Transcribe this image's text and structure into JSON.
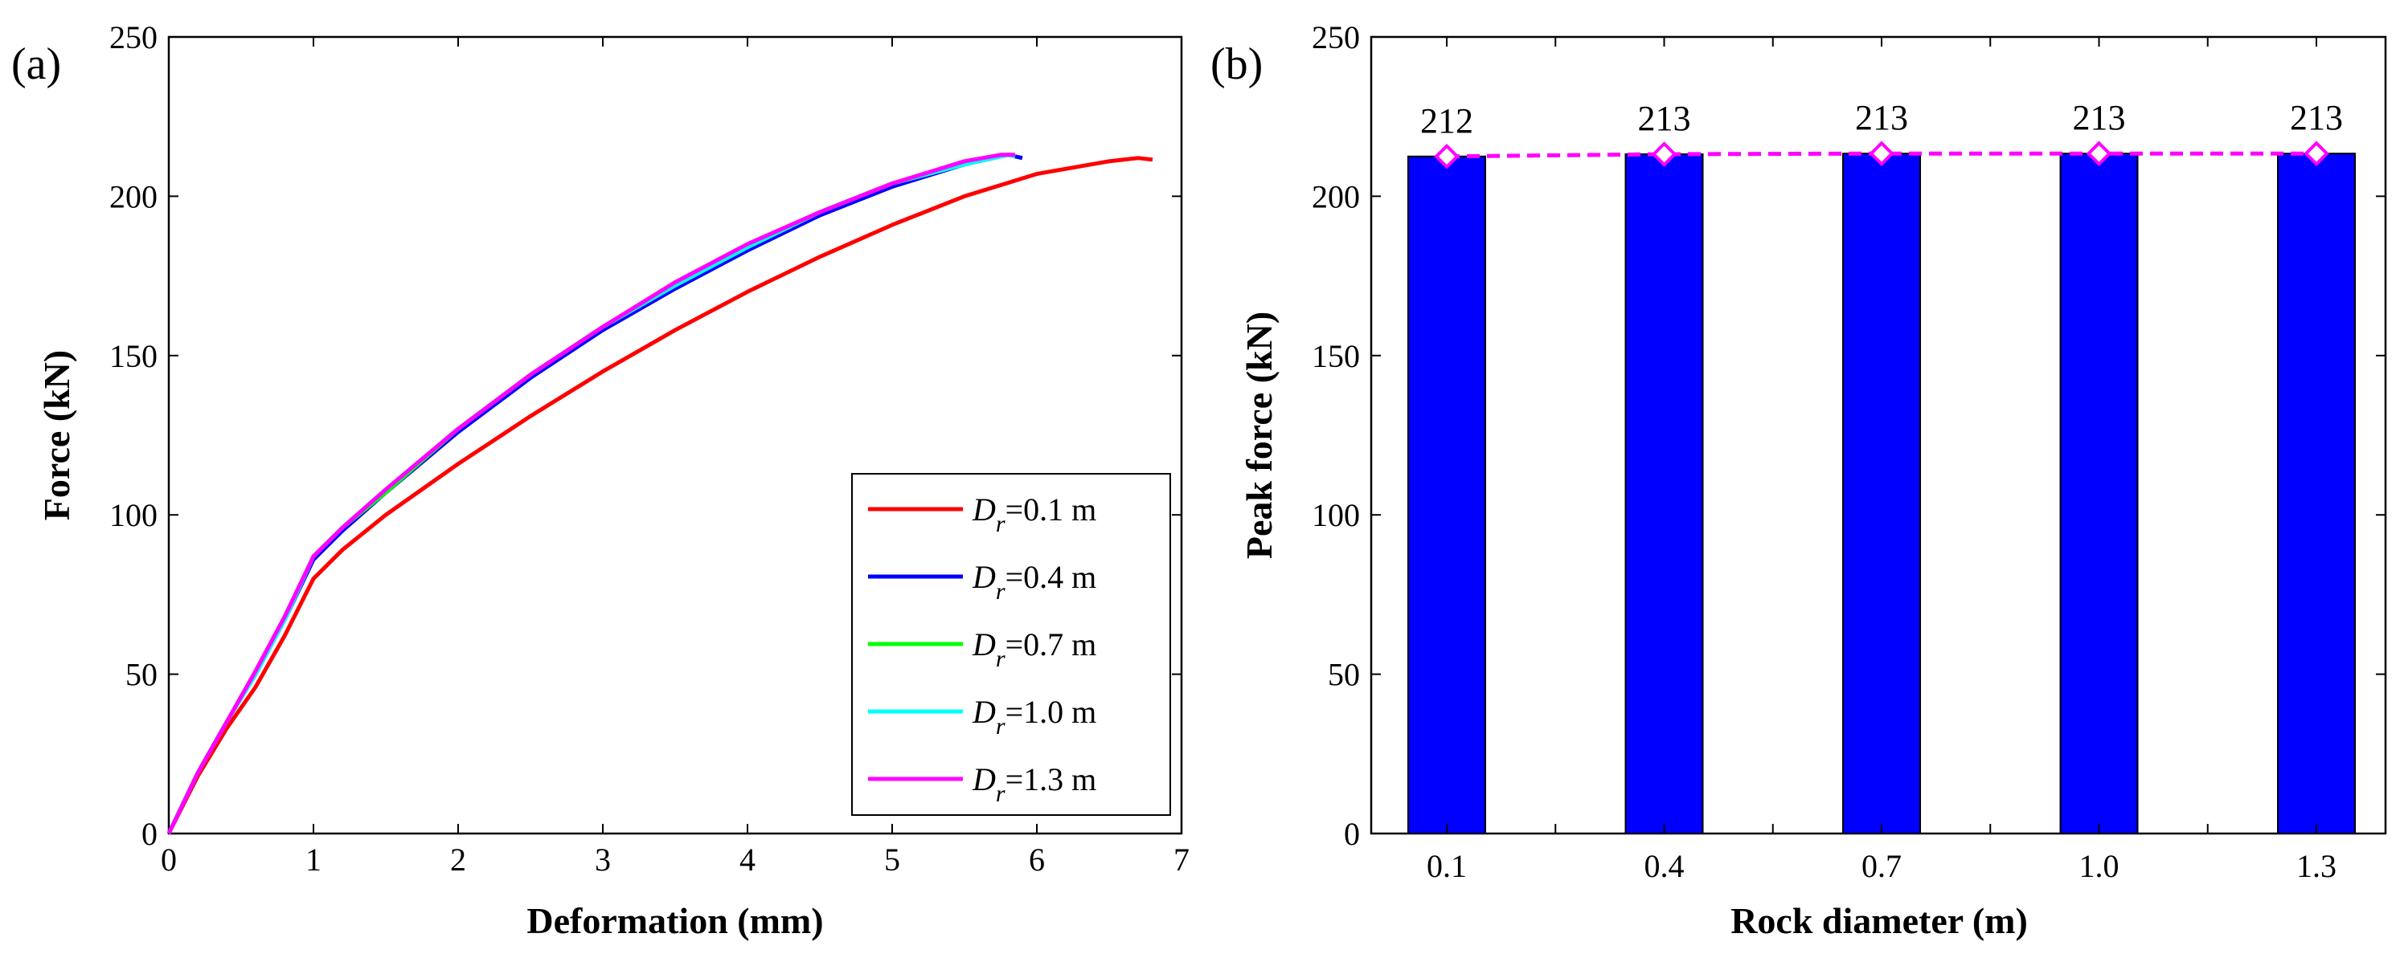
{
  "panels": {
    "a": "(a)",
    "b": "(b)"
  },
  "chart_data": [
    {
      "type": "line",
      "xlabel": "Deformation (mm)",
      "ylabel": "Force (kN)",
      "xlim": [
        0,
        7
      ],
      "ylim": [
        0,
        250
      ],
      "xticks": [
        0,
        1,
        2,
        3,
        4,
        5,
        6,
        7
      ],
      "yticks": [
        0,
        50,
        100,
        150,
        200,
        250
      ],
      "grid": false,
      "legend_position": "bottom-right",
      "series": [
        {
          "name": "Dr=0.1 m",
          "legend_symbol": "D",
          "legend_subscript": "r",
          "legend_rest": "=0.1 m",
          "color": "#ff0000",
          "points": [
            [
              0,
              0
            ],
            [
              0.2,
              18
            ],
            [
              0.4,
              33
            ],
            [
              0.6,
              46
            ],
            [
              0.8,
              62
            ],
            [
              1.0,
              80
            ],
            [
              1.2,
              89
            ],
            [
              1.5,
              100
            ],
            [
              2.0,
              116
            ],
            [
              2.5,
              131
            ],
            [
              3.0,
              145
            ],
            [
              3.5,
              158
            ],
            [
              4.0,
              170
            ],
            [
              4.5,
              181
            ],
            [
              5.0,
              191
            ],
            [
              5.5,
              200
            ],
            [
              6.0,
              207
            ],
            [
              6.5,
              211
            ],
            [
              6.7,
              212
            ],
            [
              6.8,
              211.5
            ]
          ]
        },
        {
          "name": "Dr=0.4 m",
          "legend_symbol": "D",
          "legend_subscript": "r",
          "legend_rest": "=0.4 m",
          "color": "#0000ff",
          "points": [
            [
              0,
              0
            ],
            [
              0.2,
              19
            ],
            [
              0.4,
              35
            ],
            [
              0.6,
              50
            ],
            [
              0.8,
              67
            ],
            [
              1.0,
              86
            ],
            [
              1.2,
              95
            ],
            [
              1.5,
              107
            ],
            [
              2.0,
              126
            ],
            [
              2.5,
              143
            ],
            [
              3.0,
              158
            ],
            [
              3.5,
              171
            ],
            [
              4.0,
              183
            ],
            [
              4.5,
              194
            ],
            [
              5.0,
              203
            ],
            [
              5.5,
              210
            ],
            [
              5.8,
              213
            ],
            [
              5.9,
              212
            ]
          ]
        },
        {
          "name": "Dr=0.7 m",
          "legend_symbol": "D",
          "legend_subscript": "r",
          "legend_rest": "=0.7 m",
          "color": "#00ff00",
          "points": [
            [
              0,
              0
            ],
            [
              0.2,
              19
            ],
            [
              0.4,
              35
            ],
            [
              0.6,
              50
            ],
            [
              0.8,
              67
            ],
            [
              1.0,
              87
            ],
            [
              1.2,
              96
            ],
            [
              1.5,
              107
            ],
            [
              2.0,
              127
            ],
            [
              2.5,
              144
            ],
            [
              3.0,
              159
            ],
            [
              3.5,
              172
            ],
            [
              4.0,
              184
            ],
            [
              4.5,
              195
            ],
            [
              5.0,
              204
            ],
            [
              5.5,
              210
            ],
            [
              5.8,
              213
            ],
            [
              5.85,
              212.5
            ]
          ]
        },
        {
          "name": "Dr=1.0 m",
          "legend_symbol": "D",
          "legend_subscript": "r",
          "legend_rest": "=1.0 m",
          "color": "#00ffff",
          "points": [
            [
              0,
              0
            ],
            [
              0.2,
              19
            ],
            [
              0.4,
              35
            ],
            [
              0.6,
              50
            ],
            [
              0.8,
              67
            ],
            [
              1.0,
              87
            ],
            [
              1.2,
              96
            ],
            [
              1.5,
              108
            ],
            [
              2.0,
              127
            ],
            [
              2.5,
              144
            ],
            [
              3.0,
              159
            ],
            [
              3.5,
              172
            ],
            [
              4.0,
              184
            ],
            [
              4.5,
              195
            ],
            [
              5.0,
              204
            ],
            [
              5.5,
              210
            ],
            [
              5.8,
              213
            ],
            [
              5.85,
              212.5
            ]
          ]
        },
        {
          "name": "Dr=1.3 m",
          "legend_symbol": "D",
          "legend_subscript": "r",
          "legend_rest": "=1.3 m",
          "color": "#ff00ff",
          "points": [
            [
              0,
              0
            ],
            [
              0.2,
              19
            ],
            [
              0.4,
              35
            ],
            [
              0.6,
              51
            ],
            [
              0.8,
              68
            ],
            [
              1.0,
              87
            ],
            [
              1.2,
              96
            ],
            [
              1.5,
              108
            ],
            [
              2.0,
              127
            ],
            [
              2.5,
              144
            ],
            [
              3.0,
              159
            ],
            [
              3.5,
              173
            ],
            [
              4.0,
              185
            ],
            [
              4.5,
              195
            ],
            [
              5.0,
              204
            ],
            [
              5.5,
              211
            ],
            [
              5.75,
              213
            ],
            [
              5.85,
              213
            ]
          ]
        }
      ]
    },
    {
      "type": "bar",
      "xlabel": "Rock diameter (m)",
      "ylabel": "Peak force (kN)",
      "ylim": [
        0,
        250
      ],
      "yticks": [
        0,
        50,
        100,
        150,
        200,
        250
      ],
      "categories": [
        "0.1",
        "0.4",
        "0.7",
        "1.0",
        "1.3"
      ],
      "values": [
        212.5,
        213.2,
        213.4,
        213.4,
        213.4
      ],
      "value_labels": [
        "212",
        "213",
        "213",
        "213",
        "213"
      ],
      "bar_color": "#0000ff",
      "grid": false,
      "overlay_line": {
        "style": "dashed",
        "marker": "diamond",
        "color": "#ff00ff"
      }
    }
  ]
}
